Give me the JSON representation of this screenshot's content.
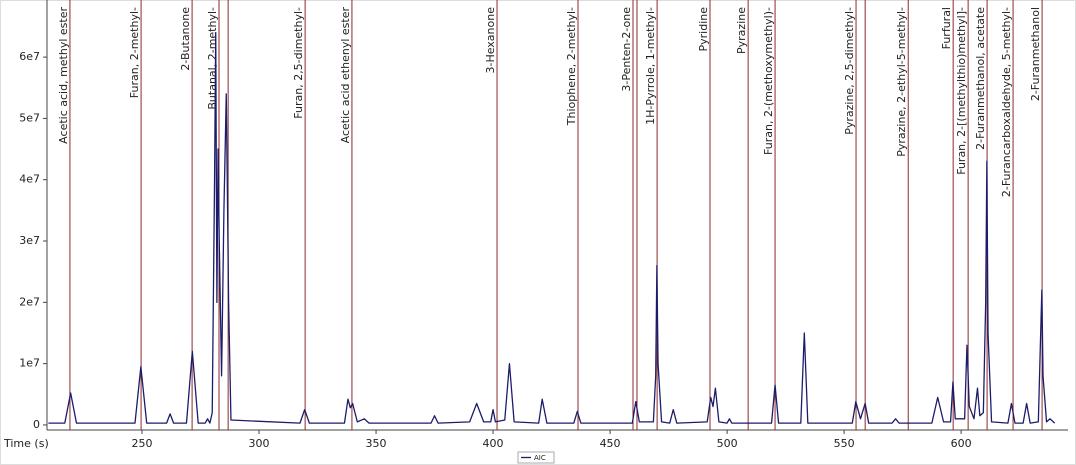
{
  "chart_data": {
    "type": "line",
    "x_label": "Time (s)",
    "xlim": [
      209.4,
      641.4
    ],
    "xticks": [
      250,
      300,
      350,
      400,
      450,
      500,
      550,
      600
    ],
    "ylim": [
      -500000,
      68500000
    ],
    "yticks": [
      0,
      {
        "value": 10000000,
        "label": "1e7"
      },
      {
        "value": 20000000,
        "label": "2e7"
      },
      {
        "value": 30000000,
        "label": "3e7"
      },
      {
        "value": 40000000,
        "label": "4e7"
      },
      {
        "value": 50000000,
        "label": "5e7"
      },
      {
        "value": 60000000,
        "label": "6e7"
      }
    ],
    "legend": "bottom",
    "marker_color": "#8b2a2a",
    "series": [
      {
        "name": "AIC",
        "color": "#1c1c6b",
        "x": [
          210,
          217,
          219.5,
          222,
          247,
          249.5,
          252,
          260.5,
          262,
          263.5,
          269,
          271.5,
          274,
          277,
          278,
          279,
          280,
          281,
          281.5,
          282,
          282.5,
          283,
          284,
          285,
          286,
          287,
          288,
          317.5,
          319.5,
          321.5,
          336.5,
          338,
          339,
          340,
          342,
          345,
          347,
          373.5,
          375,
          376.5,
          390,
          393,
          396,
          399,
          400,
          401,
          405,
          407,
          409,
          419.5,
          421,
          423,
          434.5,
          436,
          437.5,
          459.5,
          461,
          462.5,
          468.5,
          469.5,
          470,
          470.5,
          472,
          475.5,
          477,
          478.5,
          491.5,
          493,
          494,
          495,
          496.5,
          500,
          501,
          502,
          519,
          520.5,
          522,
          531.5,
          533,
          534.5,
          553.5,
          555,
          557,
          559,
          560.5,
          570.5,
          572,
          573.5,
          587.5,
          590,
          592.5,
          595.5,
          596.5,
          597.5,
          601.5,
          602.5,
          603.5,
          605.5,
          607,
          608,
          609.5,
          610.5,
          611,
          611.5,
          613,
          620,
          621.5,
          623,
          626.5,
          628,
          629.5,
          633,
          634,
          634.5,
          635,
          636.5,
          638,
          640
        ],
        "values": [
          300000,
          300000,
          5200000,
          300000,
          300000,
          9500000,
          300000,
          300000,
          1800000,
          300000,
          300000,
          12000000,
          300000,
          300000,
          1000000,
          300000,
          2000000,
          40000000,
          64000000,
          20000000,
          45000000,
          30000000,
          8000000,
          35000000,
          54000000,
          20000000,
          800000,
          300000,
          2500000,
          300000,
          300000,
          4200000,
          2800000,
          3500000,
          500000,
          1000000,
          300000,
          300000,
          1500000,
          300000,
          500000,
          3500000,
          500000,
          500000,
          2500000,
          500000,
          800000,
          10000000,
          500000,
          300000,
          4200000,
          300000,
          300000,
          2200000,
          300000,
          300000,
          3800000,
          500000,
          500000,
          8000000,
          26000000,
          10000000,
          500000,
          300000,
          2500000,
          300000,
          500000,
          4500000,
          3000000,
          6000000,
          500000,
          300000,
          1000000,
          300000,
          300000,
          6500000,
          300000,
          300000,
          15000000,
          300000,
          300000,
          3800000,
          1000000,
          3500000,
          300000,
          300000,
          1000000,
          300000,
          300000,
          4500000,
          500000,
          500000,
          7000000,
          1000000,
          1000000,
          13000000,
          3000000,
          1000000,
          6000000,
          1500000,
          2000000,
          20000000,
          43000000,
          15000000,
          500000,
          300000,
          3500000,
          300000,
          300000,
          3500000,
          300000,
          500000,
          15000000,
          22000000,
          8000000,
          500000,
          1000000,
          300000
        ]
      }
    ],
    "markers": [
      {
        "label": "Acetic acid, methyl ester",
        "x": 219.2
      },
      {
        "label": "Furan, 2-methyl-",
        "x": 249.6
      },
      {
        "label": "2-Butanone",
        "x": 271.4
      },
      {
        "label": "Butanal, 2-methyl-",
        "x": 282.9
      },
      {
        "label": null,
        "x": 286.8
      },
      {
        "label": "Furan, 2,5-dimethyl-",
        "x": 319.7
      },
      {
        "label": "Acetic acid ethenyl ester",
        "x": 339.7
      },
      {
        "label": "3-Hexanone",
        "x": 401.7
      },
      {
        "label": "Thiophene, 2-methyl-",
        "x": 436.3
      },
      {
        "label": "3-Penten-2-one",
        "x": 459.8
      },
      {
        "label": null,
        "x": 461.5
      },
      {
        "label": "1H-Pyrrole, 1-methyl-",
        "x": 470.1
      },
      {
        "label": "Pyridine",
        "x": 492.7
      },
      {
        "label": "Pyrazine",
        "x": 509
      },
      {
        "label": "Furan, 2-(methoxymethyl)-",
        "x": 520.5
      },
      {
        "label": "Pyrazine, 2,5-dimethyl-",
        "x": 555.1
      },
      {
        "label": null,
        "x": 559
      },
      {
        "label": "Pyrazine, 2-ethyl-5-methyl-",
        "x": 577.4
      },
      {
        "label": "Furfural",
        "x": 596.6
      },
      {
        "label": "Furan, 2-[(methylthio)methyl]-",
        "x": 603
      },
      {
        "label": "2-Furanmethanol, acetate",
        "x": 611.1
      },
      {
        "label": "2-Furancarboxaldehyde, 5-methyl-",
        "x": 622.2
      },
      {
        "label": "2-Furanmethanol",
        "x": 634.6
      }
    ]
  }
}
